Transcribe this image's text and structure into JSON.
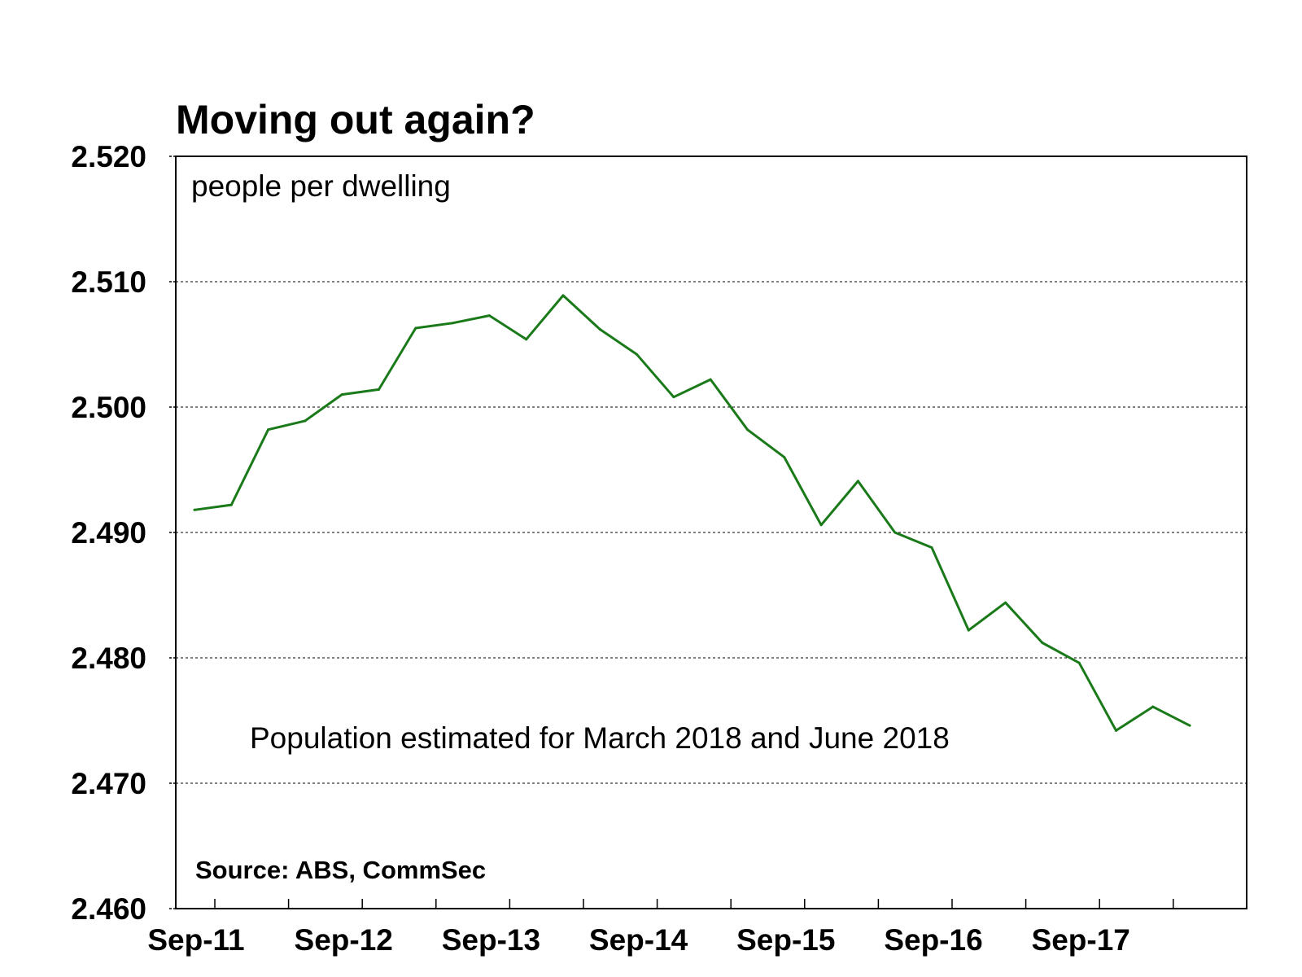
{
  "chart_data": {
    "type": "line",
    "title": "Moving out again?",
    "unit_label": "people per dwelling",
    "annotation": "Population estimated for March 2018 and June 2018",
    "source": "Source: ABS, CommSec",
    "xlabel": "",
    "ylabel": "",
    "ylim": [
      2.46,
      2.52
    ],
    "yticks": [
      "2.460",
      "2.470",
      "2.480",
      "2.490",
      "2.500",
      "2.510",
      "2.520"
    ],
    "xtick_labels": [
      "Sep-11",
      "Sep-12",
      "Sep-13",
      "Sep-14",
      "Sep-15",
      "Sep-16",
      "Sep-17"
    ],
    "grid": "horizontal dashed",
    "line_color": "#1a7a1a",
    "x": [
      "Sep-11",
      "Dec-11",
      "Mar-12",
      "Jun-12",
      "Sep-12",
      "Dec-12",
      "Mar-13",
      "Jun-13",
      "Sep-13",
      "Dec-13",
      "Mar-14",
      "Jun-14",
      "Sep-14",
      "Dec-14",
      "Mar-15",
      "Jun-15",
      "Sep-15",
      "Dec-15",
      "Mar-16",
      "Jun-16",
      "Sep-16",
      "Dec-16",
      "Mar-17",
      "Jun-17",
      "Sep-17",
      "Dec-17",
      "Mar-18",
      "Jun-18"
    ],
    "series": [
      {
        "values": [
          2.4918,
          2.4922,
          2.4982,
          2.4989,
          2.501,
          2.5014,
          2.5063,
          2.5067,
          2.5073,
          2.5054,
          2.5089,
          2.5062,
          2.5042,
          2.5008,
          2.5022,
          2.4982,
          2.496,
          2.4906,
          2.4941,
          2.49,
          2.4888,
          2.4822,
          2.4844,
          2.4812,
          2.4796,
          2.4742,
          2.4761,
          2.4746
        ]
      }
    ]
  }
}
